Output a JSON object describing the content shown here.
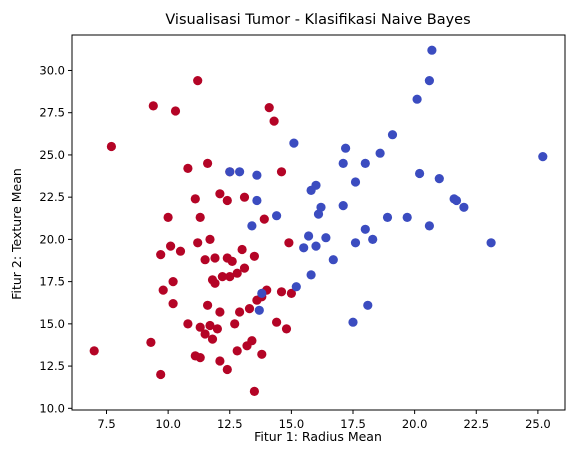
{
  "chart_data": {
    "type": "scatter",
    "title": "Visualisasi Tumor - Klasifikasi Naive Bayes",
    "xlabel": "Fitur 1: Radius Mean",
    "ylabel": "Fitur 2: Texture Mean",
    "xlim": [
      6.1,
      26.1
    ],
    "ylim": [
      9.9,
      32.1
    ],
    "xticks": [
      7.5,
      10.0,
      12.5,
      15.0,
      17.5,
      20.0,
      22.5,
      25.0
    ],
    "xtick_labels": [
      "7.5",
      "10.0",
      "12.5",
      "15.0",
      "17.5",
      "20.0",
      "22.5",
      "25.0"
    ],
    "yticks": [
      10.0,
      12.5,
      15.0,
      17.5,
      20.0,
      22.5,
      25.0,
      27.5,
      30.0
    ],
    "ytick_labels": [
      "10.0",
      "12.5",
      "15.0",
      "17.5",
      "20.0",
      "22.5",
      "25.0",
      "27.5",
      "30.0"
    ],
    "grid": false,
    "legend": "none",
    "series": [
      {
        "color": "#b40426",
        "points": [
          [
            7.0,
            13.4
          ],
          [
            7.7,
            25.5
          ],
          [
            9.3,
            13.9
          ],
          [
            9.4,
            27.9
          ],
          [
            9.7,
            19.1
          ],
          [
            9.8,
            17.0
          ],
          [
            9.7,
            12.0
          ],
          [
            10.0,
            21.3
          ],
          [
            10.1,
            19.6
          ],
          [
            10.2,
            17.5
          ],
          [
            10.2,
            16.2
          ],
          [
            10.3,
            27.6
          ],
          [
            10.5,
            19.3
          ],
          [
            10.8,
            24.2
          ],
          [
            10.8,
            15.0
          ],
          [
            11.1,
            22.4
          ],
          [
            11.1,
            13.1
          ],
          [
            11.2,
            29.4
          ],
          [
            11.2,
            19.8
          ],
          [
            11.3,
            13.0
          ],
          [
            11.3,
            14.8
          ],
          [
            11.3,
            21.3
          ],
          [
            11.5,
            18.8
          ],
          [
            11.5,
            14.4
          ],
          [
            11.6,
            24.5
          ],
          [
            11.6,
            16.1
          ],
          [
            11.7,
            20.0
          ],
          [
            11.7,
            14.9
          ],
          [
            11.8,
            17.6
          ],
          [
            11.8,
            14.1
          ],
          [
            11.9,
            17.4
          ],
          [
            11.9,
            18.9
          ],
          [
            12.0,
            14.7
          ],
          [
            12.1,
            15.7
          ],
          [
            12.1,
            22.7
          ],
          [
            12.1,
            12.8
          ],
          [
            12.2,
            17.8
          ],
          [
            12.4,
            18.9
          ],
          [
            12.4,
            22.3
          ],
          [
            12.4,
            12.3
          ],
          [
            12.5,
            17.8
          ],
          [
            12.5,
            24.0
          ],
          [
            12.6,
            18.7
          ],
          [
            12.7,
            15.0
          ],
          [
            12.8,
            13.4
          ],
          [
            12.8,
            18.0
          ],
          [
            12.9,
            15.7
          ],
          [
            13.0,
            19.4
          ],
          [
            13.1,
            22.5
          ],
          [
            13.1,
            18.3
          ],
          [
            13.2,
            13.7
          ],
          [
            13.3,
            15.9
          ],
          [
            13.4,
            14.0
          ],
          [
            13.5,
            11.0
          ],
          [
            13.5,
            19.0
          ],
          [
            13.6,
            16.4
          ],
          [
            13.8,
            16.6
          ],
          [
            13.8,
            13.2
          ],
          [
            13.9,
            21.2
          ],
          [
            14.0,
            17.0
          ],
          [
            14.1,
            27.8
          ],
          [
            14.3,
            27.0
          ],
          [
            14.4,
            15.1
          ],
          [
            14.6,
            24.0
          ],
          [
            14.6,
            16.9
          ],
          [
            14.8,
            14.7
          ],
          [
            14.9,
            19.8
          ],
          [
            15.0,
            16.8
          ]
        ]
      },
      {
        "color": "#3b4cc0",
        "points": [
          [
            12.5,
            24.0
          ],
          [
            12.9,
            24.0
          ],
          [
            13.6,
            23.8
          ],
          [
            13.6,
            22.3
          ],
          [
            13.4,
            20.8
          ],
          [
            13.7,
            15.8
          ],
          [
            13.8,
            16.8
          ],
          [
            14.4,
            21.4
          ],
          [
            15.1,
            25.7
          ],
          [
            15.2,
            17.2
          ],
          [
            15.5,
            19.5
          ],
          [
            15.7,
            20.2
          ],
          [
            15.8,
            22.9
          ],
          [
            15.8,
            17.9
          ],
          [
            16.0,
            23.2
          ],
          [
            16.0,
            19.6
          ],
          [
            16.1,
            21.5
          ],
          [
            16.2,
            21.9
          ],
          [
            16.4,
            20.1
          ],
          [
            16.7,
            18.8
          ],
          [
            17.1,
            24.5
          ],
          [
            17.1,
            22.0
          ],
          [
            17.2,
            25.4
          ],
          [
            17.6,
            23.4
          ],
          [
            17.5,
            15.1
          ],
          [
            17.6,
            19.8
          ],
          [
            18.0,
            24.5
          ],
          [
            18.0,
            20.6
          ],
          [
            18.1,
            16.1
          ],
          [
            18.3,
            20.0
          ],
          [
            18.6,
            25.1
          ],
          [
            18.9,
            21.3
          ],
          [
            19.1,
            26.2
          ],
          [
            19.7,
            21.3
          ],
          [
            20.1,
            28.3
          ],
          [
            20.2,
            23.9
          ],
          [
            20.6,
            29.4
          ],
          [
            20.6,
            20.8
          ],
          [
            20.7,
            31.2
          ],
          [
            21.0,
            23.6
          ],
          [
            21.6,
            22.4
          ],
          [
            21.7,
            22.3
          ],
          [
            22.0,
            21.9
          ],
          [
            23.1,
            19.8
          ],
          [
            25.2,
            24.9
          ]
        ]
      }
    ]
  }
}
